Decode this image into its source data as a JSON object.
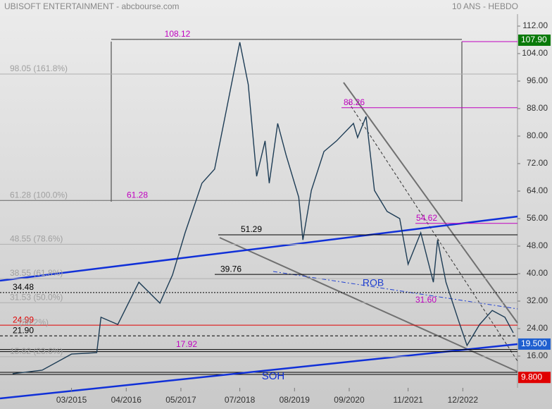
{
  "chart_data": {
    "type": "line",
    "title": "UBISOFT ENTERTAINMENT - abcbourse.com",
    "subtitle": "10 ANS - HEBDO",
    "x": [
      "01/2014",
      "08/2014",
      "03/2015",
      "09/2015",
      "10/2015",
      "02/2016",
      "07/2016",
      "12/2016",
      "03/2017",
      "06/2017",
      "10/2017",
      "01/2018",
      "04/2018",
      "07/2018",
      "09/2018",
      "11/2018",
      "01/2019",
      "02/2019",
      "04/2019",
      "06/2019",
      "09/2019",
      "10/2019",
      "12/2019",
      "03/2020",
      "06/2020",
      "10/2020",
      "11/2020",
      "01/2021",
      "03/2021",
      "06/2021",
      "09/2021",
      "11/2021",
      "02/2022",
      "05/2022",
      "06/2022",
      "08/2022",
      "11/2022",
      "01/2023",
      "04/2023",
      "07/2023",
      "10/2023",
      "12/2023"
    ],
    "values": [
      10.9,
      11.9,
      16.6,
      17,
      27.3,
      25.2,
      37.5,
      31.4,
      39.6,
      51.9,
      66.3,
      70.4,
      88.8,
      107.3,
      95,
      68.3,
      78.6,
      66.3,
      83.7,
      74.5,
      62.2,
      49.8,
      64.2,
      75.5,
      78.6,
      83.7,
      79.6,
      85.7,
      64.2,
      58.1,
      56,
      42.7,
      51.9,
      37.5,
      49.8,
      37.5,
      26.3,
      19.1,
      25.2,
      29.3,
      27.3,
      22.8
    ],
    "color": "#1d3c55",
    "xlim": [
      "10/2013",
      "01/2024"
    ],
    "xticks": [
      "03/2015",
      "04/2016",
      "05/2017",
      "07/2018",
      "08/2019",
      "09/2020",
      "11/2021",
      "12/2022"
    ],
    "ylim": [
      4,
      116
    ],
    "yticks": [
      {
        "value": 112,
        "label": "112.00"
      },
      {
        "value": 104,
        "label": "104.00"
      },
      {
        "value": 96,
        "label": "96.00"
      },
      {
        "value": 88,
        "label": "88.00"
      },
      {
        "value": 80,
        "label": "80.00"
      },
      {
        "value": 72,
        "label": "72.00"
      },
      {
        "value": 64,
        "label": "64.00"
      },
      {
        "value": 56,
        "label": "56.00"
      },
      {
        "value": 48,
        "label": "48.00"
      },
      {
        "value": 40,
        "label": "40.00"
      },
      {
        "value": 32,
        "label": "32.00"
      },
      {
        "value": 24,
        "label": "24.00"
      },
      {
        "value": 16,
        "label": "16.00"
      }
    ],
    "levels": [
      {
        "value": 108.12,
        "label": "108.12",
        "color": "#c000c0"
      },
      {
        "value": 98.05,
        "label": "98.05 (161.8%)",
        "color": "#a0a0a0"
      },
      {
        "value": 88.26,
        "label": "88.26",
        "color": "#c000c0"
      },
      {
        "value": 61.28,
        "label": "61.28 (100.0%)",
        "color": "#a0a0a0"
      },
      {
        "value": 61.28,
        "label": "61.28",
        "color": "#c000c0"
      },
      {
        "value": 54.62,
        "label": "54.62",
        "color": "#c000c0"
      },
      {
        "value": 51.29,
        "label": "51.29",
        "color": "#000000"
      },
      {
        "value": 48.55,
        "label": "48.55 (78.6%)",
        "color": "#a0a0a0"
      },
      {
        "value": 39.76,
        "label": "39.76",
        "color": "#000000"
      },
      {
        "value": 38.55,
        "label": "38.55 (61.8%)",
        "color": "#a0a0a0"
      },
      {
        "value": 34.48,
        "label": "34.48",
        "color": "#000000"
      },
      {
        "value": 31.53,
        "label": "31.53 (50.0%)",
        "color": "#a0a0a0"
      },
      {
        "value": 31.6,
        "label": "31.60",
        "color": "#c000c0"
      },
      {
        "value": 24.99,
        "label": "24.99",
        "color": "#e00000"
      },
      {
        "value": 21.9,
        "label": "21.90",
        "color": "#000000"
      },
      {
        "value": 17.92,
        "label": "17.92",
        "color": "#c000c0"
      },
      {
        "value": 15.82,
        "label": "15.82 (23.6%)",
        "color": "#a0a0a0"
      }
    ],
    "annotations": [
      "ROB",
      "SOH",
      "(38.2%)"
    ],
    "badges": [
      {
        "value": 107.9,
        "label": "107.90",
        "color": "#0a7a0a"
      },
      {
        "value": 19.5,
        "label": "19.500",
        "color": "#1f5fcf"
      },
      {
        "value": 9.8,
        "label": "9.800",
        "color": "#e00000"
      }
    ]
  }
}
